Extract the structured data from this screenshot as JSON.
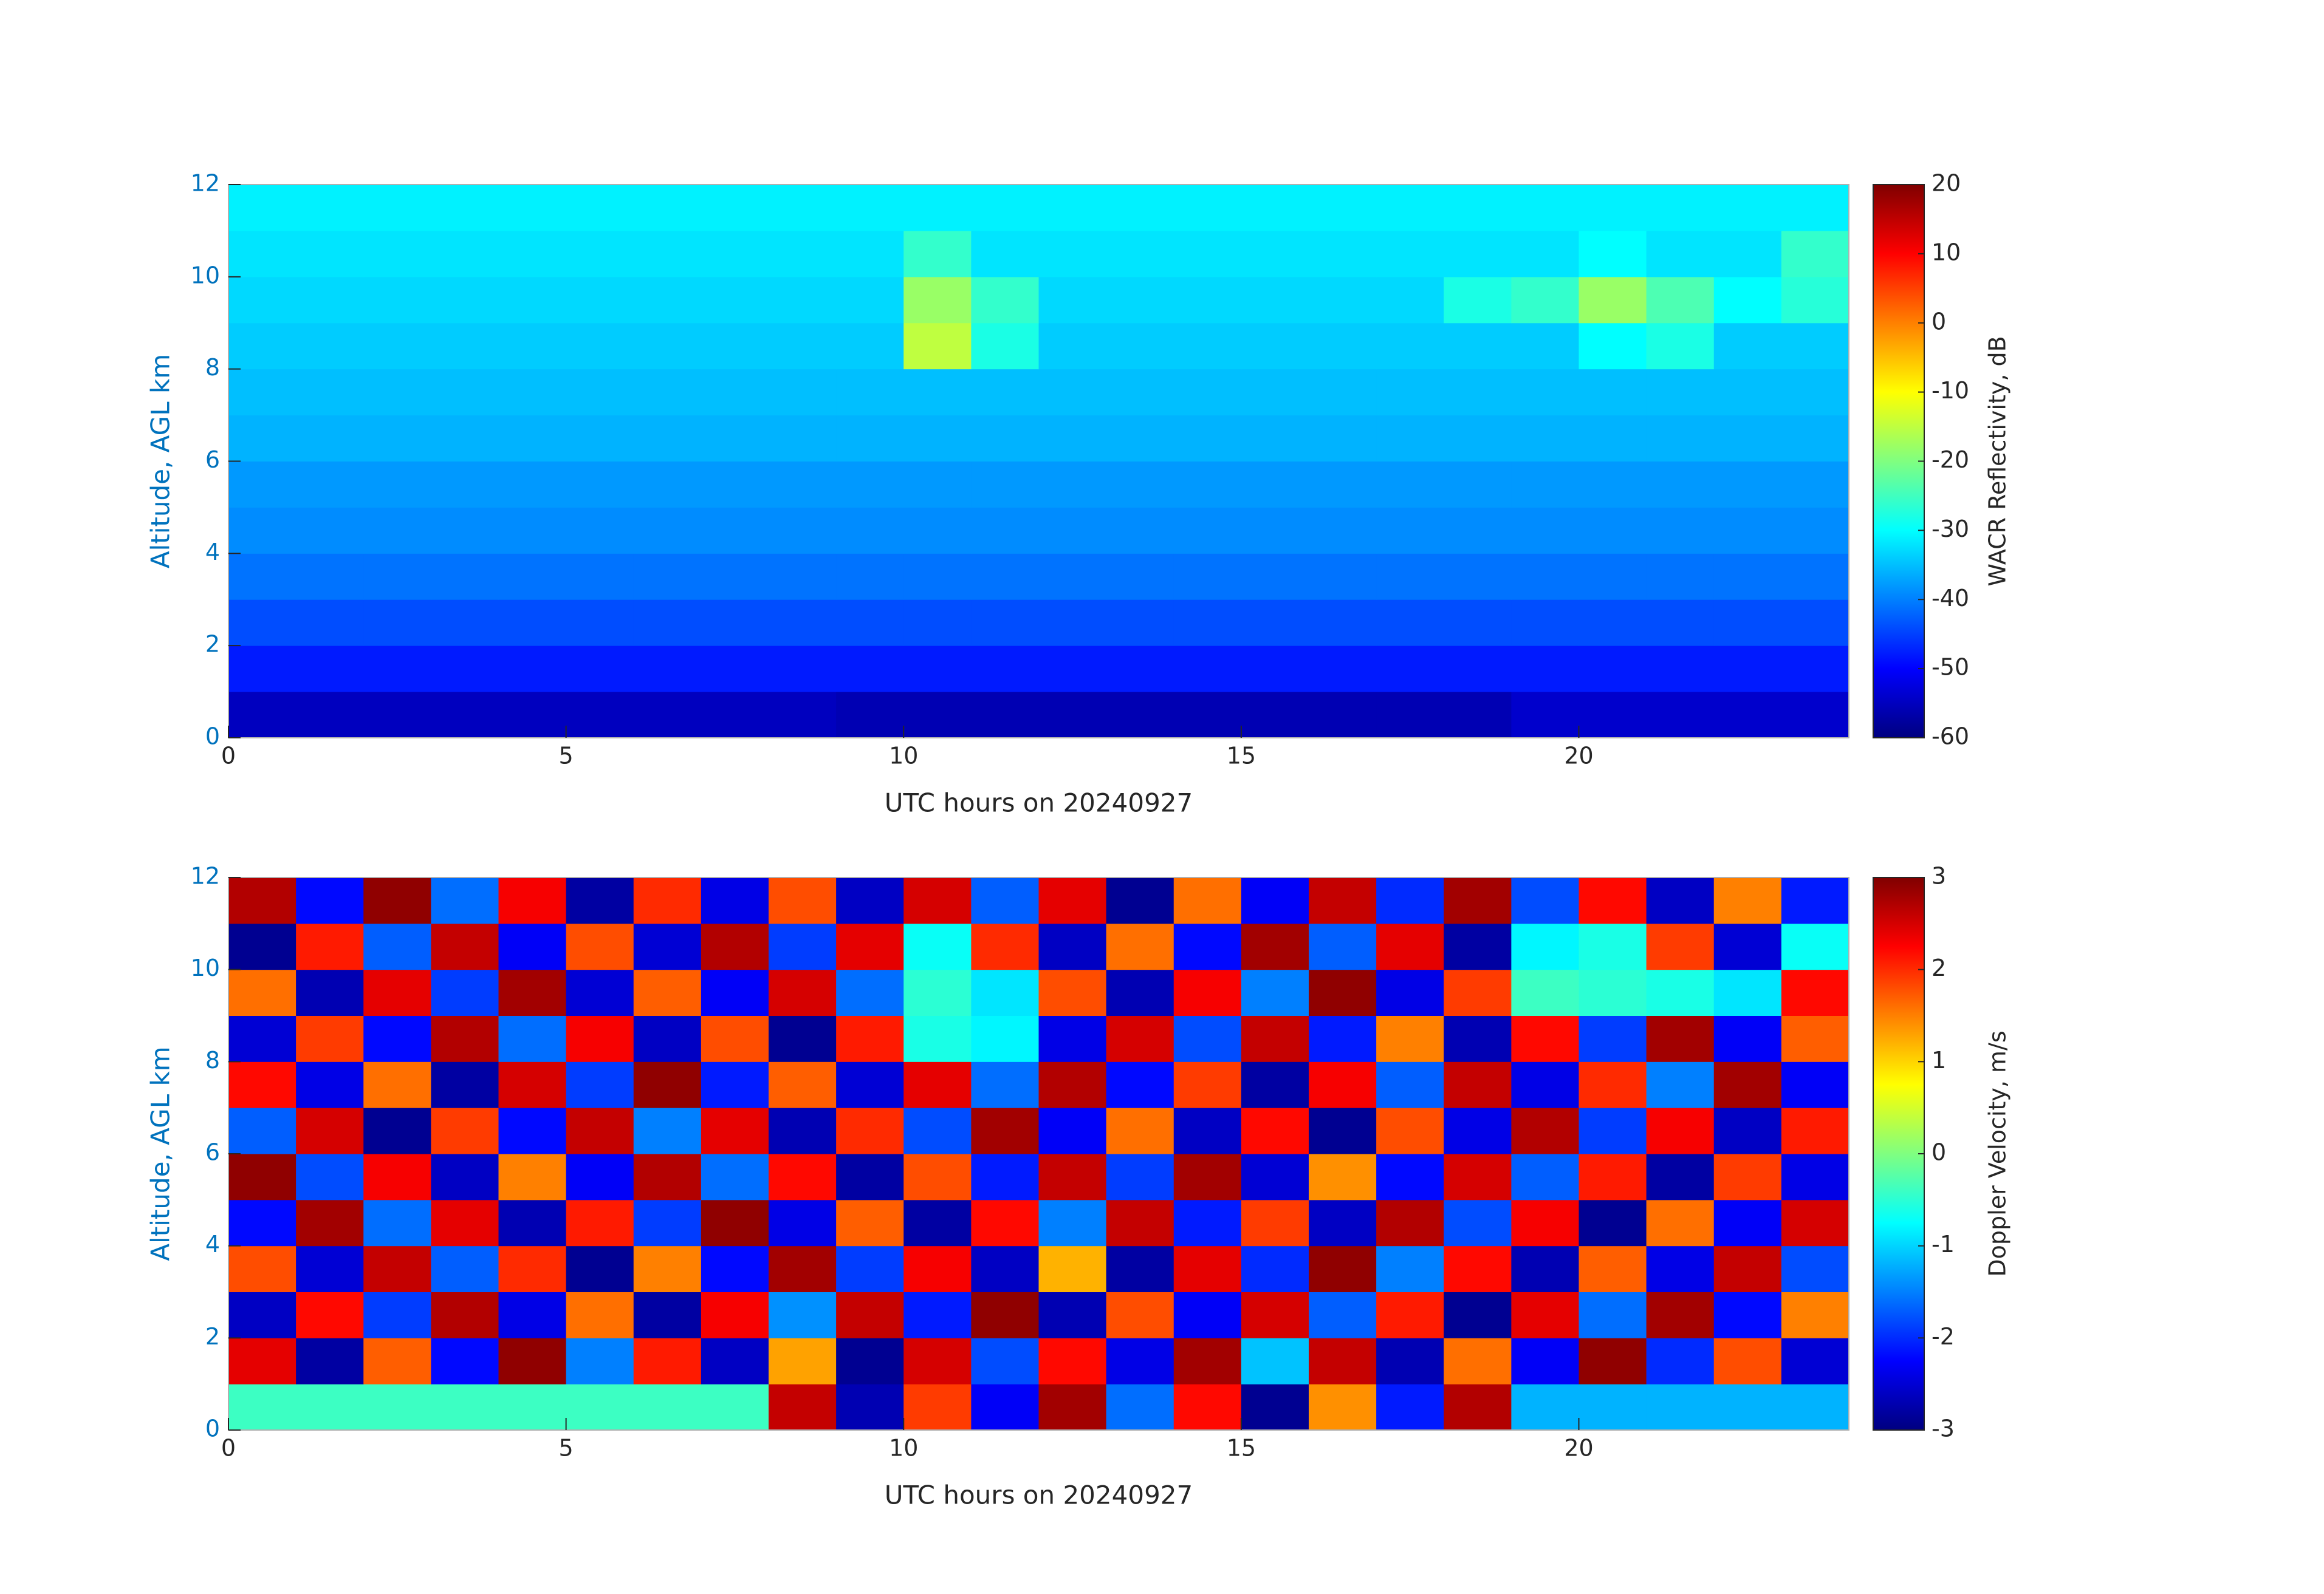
{
  "chart_data": [
    {
      "type": "heatmap",
      "colormap": "jet",
      "xlabel": "UTC hours on 20240927",
      "ylabel": "Altitude, AGL km",
      "colorbar_label": "WACR Reflectivity, dB",
      "xlim": [
        0,
        24
      ],
      "ylim": [
        0,
        12
      ],
      "xticks": [
        0,
        5,
        10,
        15,
        20
      ],
      "yticks": [
        0,
        2,
        4,
        6,
        8,
        10,
        12
      ],
      "clim": [
        -60,
        20
      ],
      "cticks": [
        -60,
        -50,
        -40,
        -30,
        -20,
        -10,
        0,
        10,
        20
      ],
      "x_edges": [
        0,
        1,
        2,
        3,
        4,
        5,
        6,
        7,
        8,
        9,
        10,
        11,
        12,
        13,
        14,
        15,
        16,
        17,
        18,
        19,
        20,
        21,
        22,
        23,
        24
      ],
      "y_edges": [
        0,
        1,
        2,
        3,
        4,
        5,
        6,
        7,
        8,
        9,
        10,
        11,
        12
      ],
      "z": [
        [
          -55,
          -55,
          -55,
          -55,
          -55,
          -55,
          -55,
          -55,
          -55,
          -56,
          -56,
          -56,
          -56,
          -56,
          -56,
          -56,
          -56,
          -56,
          -56,
          -54,
          -54,
          -54,
          -54,
          -54
        ],
        [
          -48,
          -48,
          -48,
          -48,
          -48,
          -48,
          -48,
          -48,
          -48,
          -48,
          -48,
          -48,
          -48,
          -48,
          -48,
          -48,
          -48,
          -48,
          -48,
          -48,
          -48,
          -48,
          -48,
          -48
        ],
        [
          -44,
          -44,
          -44,
          -44,
          -44,
          -44,
          -44,
          -44,
          -44,
          -44,
          -44,
          -44,
          -44,
          -44,
          -44,
          -44,
          -44,
          -44,
          -44,
          -44,
          -44,
          -44,
          -44,
          -44
        ],
        [
          -41,
          -41,
          -41,
          -41,
          -41,
          -41,
          -41,
          -41,
          -41,
          -41,
          -41,
          -41,
          -41,
          -41,
          -41,
          -41,
          -41,
          -41,
          -41,
          -41,
          -41,
          -41,
          -41,
          -41
        ],
        [
          -39,
          -39,
          -39,
          -39,
          -39,
          -39,
          -39,
          -39,
          -39,
          -39,
          -39,
          -39,
          -39,
          -39,
          -39,
          -39,
          -39,
          -39,
          -39,
          -39,
          -39,
          -39,
          -39,
          -39
        ],
        [
          -38,
          -38,
          -38,
          -38,
          -38,
          -38,
          -38,
          -38,
          -38,
          -38,
          -38,
          -38,
          -38,
          -38,
          -38,
          -38,
          -38,
          -38,
          -38,
          -38,
          -38,
          -38,
          -38,
          -38
        ],
        [
          -36,
          -36,
          -36,
          -36,
          -36,
          -36,
          -36,
          -36,
          -36,
          -36,
          -36,
          -36,
          -36,
          -36,
          -36,
          -36,
          -36,
          -36,
          -36,
          -36,
          -36,
          -36,
          -36,
          -36
        ],
        [
          -35,
          -35,
          -35,
          -35,
          -35,
          -35,
          -35,
          -35,
          -35,
          -35,
          -35,
          -35,
          -35,
          -35,
          -35,
          -35,
          -35,
          -35,
          -35,
          -35,
          -35,
          -35,
          -35,
          -35
        ],
        [
          -34,
          -34,
          -34,
          -34,
          -34,
          -34,
          -34,
          -34,
          -34,
          -34,
          -15,
          -28,
          -34,
          -34,
          -34,
          -34,
          -34,
          -34,
          -34,
          -34,
          -30,
          -28,
          -34,
          -34
        ],
        [
          -33,
          -33,
          -33,
          -33,
          -33,
          -33,
          -33,
          -33,
          -33,
          -33,
          -18,
          -26,
          -33,
          -33,
          -33,
          -33,
          -33,
          -33,
          -28,
          -26,
          -18,
          -24,
          -30,
          -27
        ],
        [
          -32,
          -32,
          -32,
          -32,
          -32,
          -32,
          -32,
          -32,
          -32,
          -32,
          -26,
          -32,
          -32,
          -32,
          -32,
          -32,
          -32,
          -32,
          -32,
          -32,
          -30,
          -32,
          -32,
          -26
        ],
        [
          -31,
          -31,
          -31,
          -31,
          -31,
          -31,
          -31,
          -31,
          -31,
          -31,
          -31,
          -31,
          -31,
          -31,
          -31,
          -31,
          -31,
          -31,
          -31,
          -31,
          -31,
          -31,
          -31,
          -31
        ]
      ]
    },
    {
      "type": "heatmap",
      "colormap": "jet",
      "xlabel": "UTC hours on 20240927",
      "ylabel": "Altitude, AGL km",
      "colorbar_label": "Doppler Velocity, m/s",
      "xlim": [
        0,
        24
      ],
      "ylim": [
        0,
        12
      ],
      "xticks": [
        0,
        5,
        10,
        15,
        20
      ],
      "yticks": [
        0,
        2,
        4,
        6,
        8,
        10,
        12
      ],
      "clim": [
        -3,
        3
      ],
      "cticks": [
        -3,
        -2,
        -1,
        0,
        1,
        2,
        3
      ],
      "x_edges": [
        0,
        1,
        2,
        3,
        4,
        5,
        6,
        7,
        8,
        9,
        10,
        11,
        12,
        13,
        14,
        15,
        16,
        17,
        18,
        19,
        20,
        21,
        22,
        23,
        24
      ],
      "y_edges": [
        0,
        1,
        2,
        3,
        4,
        5,
        6,
        7,
        8,
        9,
        10,
        11,
        12
      ],
      "z": [
        [
          -0.4,
          -0.4,
          -0.4,
          -0.4,
          -0.4,
          -0.4,
          -0.4,
          -0.4,
          2.6,
          -2.7,
          1.9,
          -2.3,
          2.8,
          -1.6,
          2.2,
          -2.9,
          1.4,
          -2.1,
          2.7,
          -1.2,
          -1.2,
          -1.2,
          -1.2,
          -1.2
        ],
        [
          2.4,
          -2.8,
          1.7,
          -2.2,
          2.9,
          -1.5,
          2.1,
          -2.6,
          1.3,
          -2.9,
          2.5,
          -1.8,
          2.2,
          -2.4,
          2.8,
          -1.1,
          2.6,
          -2.7,
          1.6,
          -2.3,
          2.9,
          -2.0,
          1.8,
          -2.5
        ],
        [
          -2.6,
          2.2,
          -1.9,
          2.7,
          -2.4,
          1.6,
          -2.8,
          2.3,
          -1.4,
          2.6,
          -2.1,
          2.9,
          -2.7,
          1.8,
          -2.3,
          2.5,
          -1.7,
          2.1,
          -2.9,
          2.4,
          -1.6,
          2.8,
          -2.2,
          1.5
        ],
        [
          1.8,
          -2.5,
          2.6,
          -1.7,
          2.0,
          -2.9,
          1.5,
          -2.2,
          2.8,
          -1.9,
          2.3,
          -2.6,
          1.2,
          -2.8,
          2.4,
          -2.0,
          2.9,
          -1.5,
          2.2,
          -2.7,
          1.7,
          -2.4,
          2.6,
          -1.8
        ],
        [
          -2.2,
          2.8,
          -1.6,
          2.4,
          -2.7,
          2.1,
          -1.9,
          2.9,
          -2.4,
          1.7,
          -2.8,
          2.2,
          -1.5,
          2.6,
          -2.1,
          1.9,
          -2.6,
          2.7,
          -1.8,
          2.3,
          -2.9,
          1.6,
          -2.3,
          2.5
        ],
        [
          2.9,
          -1.8,
          2.3,
          -2.6,
          1.5,
          -2.3,
          2.7,
          -1.6,
          2.2,
          -2.8,
          1.8,
          -2.1,
          2.6,
          -1.9,
          2.8,
          -2.5,
          1.4,
          -2.2,
          2.5,
          -1.7,
          2.1,
          -2.8,
          1.9,
          -2.4
        ],
        [
          -1.7,
          2.5,
          -2.9,
          1.9,
          -2.2,
          2.6,
          -1.5,
          2.4,
          -2.7,
          2.0,
          -1.8,
          2.8,
          -2.3,
          1.6,
          -2.6,
          2.2,
          -2.9,
          1.8,
          -2.4,
          2.7,
          -1.9,
          2.3,
          -2.6,
          2.1
        ],
        [
          2.2,
          -2.4,
          1.6,
          -2.8,
          2.5,
          -1.9,
          2.9,
          -2.1,
          1.7,
          -2.5,
          2.4,
          -1.6,
          2.7,
          -2.2,
          1.9,
          -2.8,
          2.3,
          -1.7,
          2.6,
          -2.4,
          2.0,
          -1.5,
          2.8,
          -2.3
        ],
        [
          -2.5,
          1.9,
          -2.2,
          2.7,
          -1.6,
          2.3,
          -2.6,
          1.8,
          -2.9,
          2.1,
          -0.6,
          -0.8,
          -2.4,
          2.5,
          -1.8,
          2.6,
          -2.1,
          1.5,
          -2.7,
          2.2,
          -1.9,
          2.8,
          -2.3,
          1.7
        ],
        [
          1.6,
          -2.7,
          2.4,
          -1.9,
          2.8,
          -2.5,
          1.7,
          -2.3,
          2.5,
          -1.6,
          -0.5,
          -0.9,
          1.8,
          -2.7,
          2.3,
          -1.5,
          2.9,
          -2.4,
          1.9,
          -0.4,
          -0.5,
          -0.6,
          -0.9,
          2.2
        ],
        [
          -2.9,
          2.1,
          -1.7,
          2.6,
          -2.3,
          1.8,
          -2.5,
          2.7,
          -1.9,
          2.4,
          -0.7,
          2.0,
          -2.6,
          1.6,
          -2.2,
          2.8,
          -1.7,
          2.4,
          -2.8,
          -0.8,
          -0.6,
          1.9,
          -2.5,
          -0.7
        ],
        [
          2.7,
          -2.2,
          2.9,
          -1.6,
          2.3,
          -2.8,
          2.0,
          -2.4,
          1.8,
          -2.6,
          2.5,
          -1.7,
          2.4,
          -2.9,
          1.6,
          -2.3,
          2.6,
          -2.0,
          2.8,
          -1.8,
          2.2,
          -2.6,
          1.5,
          -2.1
        ]
      ]
    }
  ]
}
